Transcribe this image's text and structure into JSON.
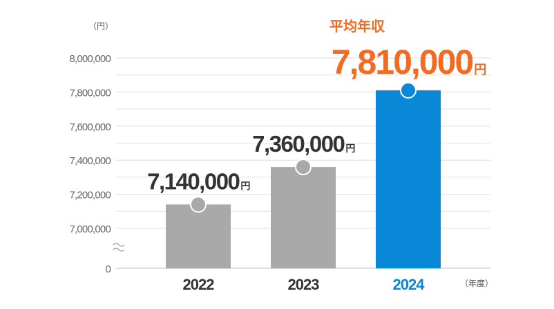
{
  "chart_data": {
    "type": "bar",
    "y_unit": "（円）",
    "x_unit": "（年度）",
    "annotation": "平均年収",
    "categories": [
      "2022",
      "2023",
      "2024"
    ],
    "values": [
      7140000,
      7360000,
      7810000
    ],
    "value_labels": [
      "7,140,000",
      "7,360,000",
      "7,810,000"
    ],
    "value_unit": "円",
    "colors": [
      "#a9a9a9",
      "#a9a9a9",
      "#0a88d8"
    ],
    "highlight": 2,
    "highlight_label_color": "#f26b21",
    "ylim": [
      0,
      8000000
    ],
    "axis_break": [
      0,
      7000000
    ],
    "yticks": [
      {
        "value": 0,
        "label": "0"
      },
      {
        "value": 7000000,
        "label": "7,000,000"
      },
      {
        "value": 7200000,
        "label": "7,200,000"
      },
      {
        "value": 7400000,
        "label": "7,400,000"
      },
      {
        "value": 7600000,
        "label": "7,600,000"
      },
      {
        "value": 7800000,
        "label": "7,800,000"
      },
      {
        "value": 8000000,
        "label": "8,000,000"
      }
    ],
    "minor_yticks": [
      7100000,
      7300000,
      7500000,
      7700000,
      7900000
    ],
    "grid": true
  }
}
